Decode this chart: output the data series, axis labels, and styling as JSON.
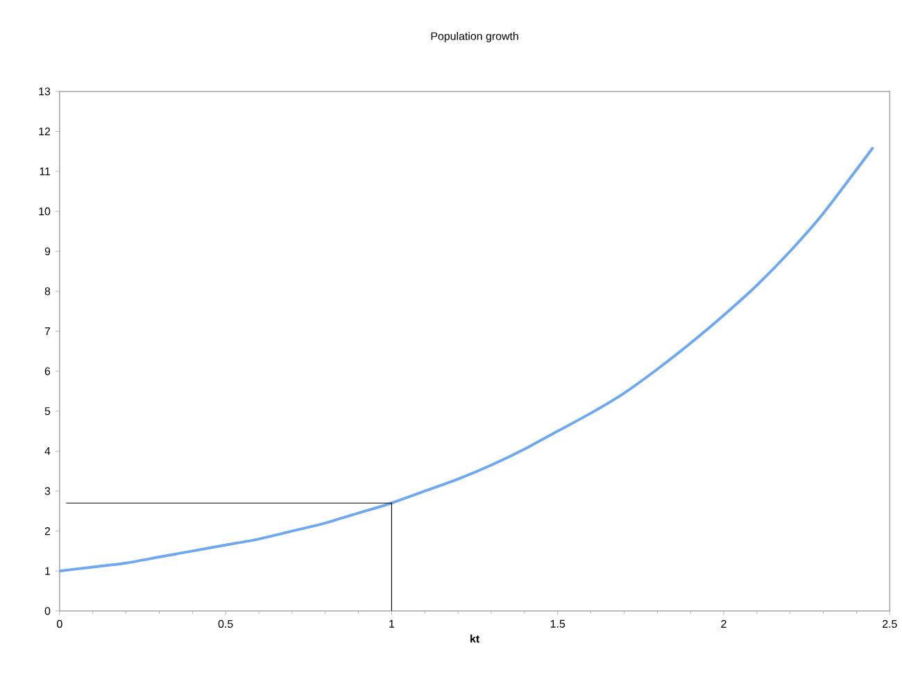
{
  "chart_data": {
    "type": "line",
    "title": "Population growth",
    "xlabel": "kt",
    "xlim": [
      0,
      2.5
    ],
    "xticks": [
      0,
      0.5,
      1,
      1.5,
      2,
      2.5
    ],
    "ylim": [
      0,
      13
    ],
    "yticks": [
      0,
      1,
      2,
      3,
      4,
      5,
      6,
      7,
      8,
      9,
      10,
      11,
      12,
      13
    ],
    "grid": false,
    "marker": "none",
    "line_style": "solid",
    "series": [
      {
        "color": "#6fa8ee",
        "x": [
          0,
          0.1,
          0.2,
          0.3,
          0.4,
          0.5,
          0.6,
          0.7,
          0.8,
          0.9,
          1,
          1.1,
          1.2,
          1.3,
          1.4,
          1.5,
          1.6,
          1.7,
          1.8,
          1.9,
          2,
          2.1,
          2.2,
          2.3,
          2.45
        ],
        "values": [
          1,
          1.1,
          1.2,
          1.35,
          1.5,
          1.65,
          1.8,
          2.0,
          2.2,
          2.45,
          2.7,
          3.0,
          3.3,
          3.65,
          4.05,
          4.5,
          4.95,
          5.45,
          6.05,
          6.7,
          7.4,
          8.15,
          9.0,
          9.95,
          11.6
        ]
      },
      {
        "color": "#000000",
        "x": [
          0.02,
          1,
          1
        ],
        "values": [
          2.7,
          2.7,
          0
        ]
      }
    ]
  }
}
